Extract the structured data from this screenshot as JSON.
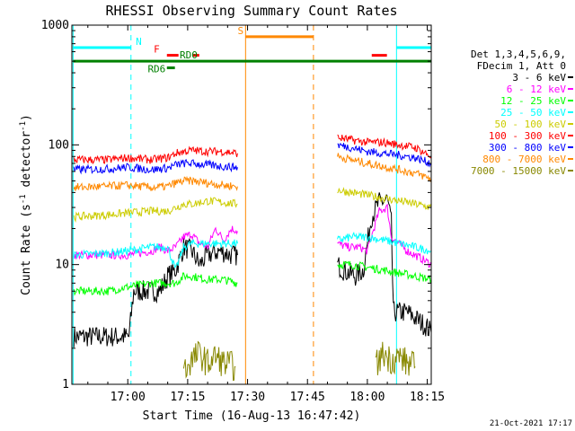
{
  "chart_data": {
    "type": "line",
    "title": "RHESSI Observing Summary Count Rates",
    "xlabel": "Start Time (16-Aug-13 16:47:42)",
    "ylabel_main": "Count Rate (s",
    "ylabel_sup1": "-1",
    "ylabel_mid": " detector",
    "ylabel_sup2": "-1",
    "ylabel_end": ")",
    "yscale": "log",
    "ylim": [
      1,
      1000
    ],
    "xlim_minutes": [
      16.0,
      106.0
    ],
    "x_ticks": [
      {
        "min": 30,
        "label": "17:00"
      },
      {
        "min": 45,
        "label": "17:15"
      },
      {
        "min": 60,
        "label": "17:30"
      },
      {
        "min": 75,
        "label": "17:45"
      },
      {
        "min": 90,
        "label": "18:00"
      },
      {
        "min": 105,
        "label": "18:15"
      }
    ],
    "y_ticks": [
      {
        "v": 1,
        "label": "1"
      },
      {
        "v": 10,
        "label": "10"
      },
      {
        "v": 100,
        "label": "100"
      },
      {
        "v": 1000,
        "label": "1000"
      }
    ],
    "legend_header": [
      "Det 1,3,4,5,6,9,",
      "FDecim 1, Att 0"
    ],
    "series": [
      {
        "name": "3 - 6 keV",
        "color": "#000000",
        "segments": [
          [
            [
              16.5,
              2.5
            ],
            [
              25,
              2.5
            ],
            [
              30.3,
              2.5
            ],
            [
              31.5,
              6
            ],
            [
              38,
              6
            ],
            [
              40,
              8
            ],
            [
              42,
              9
            ],
            [
              44,
              14
            ],
            [
              46,
              13
            ],
            [
              48,
              10
            ],
            [
              50,
              12
            ],
            [
              53,
              13
            ],
            [
              56,
              12
            ],
            [
              57.5,
              12
            ]
          ],
          [
            [
              82.5,
              10
            ],
            [
              84,
              9
            ],
            [
              87,
              8
            ],
            [
              89,
              9
            ],
            [
              91,
              25
            ],
            [
              93,
              33
            ],
            [
              95,
              35
            ],
            [
              96,
              22
            ],
            [
              96.5,
              4
            ],
            [
              100,
              4
            ],
            [
              105,
              3
            ],
            [
              106,
              2.7
            ]
          ]
        ]
      },
      {
        "name": "6 - 12 keV",
        "color": "#ff00ff",
        "segments": [
          [
            [
              16.5,
              12
            ],
            [
              25,
              12
            ],
            [
              30,
              12
            ],
            [
              36,
              13
            ],
            [
              38,
              14
            ],
            [
              40,
              13
            ],
            [
              42,
              14
            ],
            [
              44,
              17
            ],
            [
              46,
              18
            ],
            [
              48,
              15
            ],
            [
              50,
              14
            ],
            [
              52,
              20
            ],
            [
              54,
              16
            ],
            [
              56,
              20
            ],
            [
              57.5,
              19
            ]
          ],
          [
            [
              82.5,
              15
            ],
            [
              85,
              14
            ],
            [
              88,
              14
            ],
            [
              90,
              13
            ],
            [
              92,
              22
            ],
            [
              93,
              28
            ],
            [
              95,
              30
            ],
            [
              96,
              17
            ],
            [
              100,
              13
            ],
            [
              104,
              11
            ],
            [
              106,
              10
            ]
          ]
        ]
      },
      {
        "name": "12 - 25 keV",
        "color": "#00ff00",
        "segments": [
          [
            [
              16.5,
              6
            ],
            [
              25,
              6
            ],
            [
              30,
              6.5
            ],
            [
              36,
              7
            ],
            [
              38,
              7
            ],
            [
              40,
              7
            ],
            [
              42,
              7
            ],
            [
              44,
              8
            ],
            [
              46,
              8
            ],
            [
              50,
              7.5
            ],
            [
              54,
              7.5
            ],
            [
              57.5,
              7
            ]
          ],
          [
            [
              82.5,
              10
            ],
            [
              86,
              10
            ],
            [
              90,
              9.5
            ],
            [
              94,
              9
            ],
            [
              98,
              8.5
            ],
            [
              102,
              8
            ],
            [
              106,
              7.5
            ]
          ]
        ]
      },
      {
        "name": "25 - 50 keV",
        "color": "#00ffff",
        "segments": [
          [
            [
              16.5,
              12
            ],
            [
              25,
              12.5
            ],
            [
              30,
              13
            ],
            [
              36,
              14
            ],
            [
              40,
              14
            ],
            [
              42,
              9
            ],
            [
              44,
              14
            ],
            [
              46,
              15
            ],
            [
              50,
              15
            ],
            [
              54,
              15
            ],
            [
              57.5,
              15
            ]
          ],
          [
            [
              82.5,
              16
            ],
            [
              86,
              17
            ],
            [
              90,
              17
            ],
            [
              94,
              16
            ],
            [
              98,
              15
            ],
            [
              102,
              14
            ],
            [
              106,
              13
            ]
          ]
        ]
      },
      {
        "name": "50 - 100 keV",
        "color": "#cccc00",
        "segments": [
          [
            [
              16.5,
              25
            ],
            [
              25,
              26
            ],
            [
              30,
              27
            ],
            [
              36,
              28
            ],
            [
              40,
              28
            ],
            [
              42,
              30
            ],
            [
              44,
              32
            ],
            [
              46,
              32
            ],
            [
              50,
              34
            ],
            [
              54,
              33
            ],
            [
              57.5,
              32
            ]
          ],
          [
            [
              82.5,
              42
            ],
            [
              86,
              40
            ],
            [
              90,
              38
            ],
            [
              94,
              36
            ],
            [
              98,
              34
            ],
            [
              102,
              32
            ],
            [
              106,
              30
            ]
          ]
        ]
      },
      {
        "name": "100 - 300 keV",
        "color": "#ff0000",
        "segments": [
          [
            [
              16.5,
              75
            ],
            [
              25,
              75
            ],
            [
              30,
              78
            ],
            [
              36,
              75
            ],
            [
              40,
              78
            ],
            [
              42,
              85
            ],
            [
              44,
              88
            ],
            [
              46,
              90
            ],
            [
              50,
              88
            ],
            [
              54,
              88
            ],
            [
              57.5,
              85
            ]
          ],
          [
            [
              82.5,
              115
            ],
            [
              86,
              110
            ],
            [
              90,
              105
            ],
            [
              94,
              105
            ],
            [
              98,
              100
            ],
            [
              102,
              95
            ],
            [
              106,
              80
            ]
          ]
        ]
      },
      {
        "name": "300 - 800 keV",
        "color": "#0000ff",
        "segments": [
          [
            [
              16.5,
              62
            ],
            [
              25,
              63
            ],
            [
              30,
              65
            ],
            [
              36,
              62
            ],
            [
              40,
              64
            ],
            [
              42,
              68
            ],
            [
              44,
              70
            ],
            [
              46,
              70
            ],
            [
              50,
              68
            ],
            [
              54,
              66
            ],
            [
              57.5,
              65
            ]
          ],
          [
            [
              82.5,
              100
            ],
            [
              86,
              95
            ],
            [
              90,
              88
            ],
            [
              94,
              85
            ],
            [
              98,
              82
            ],
            [
              102,
              78
            ],
            [
              106,
              70
            ]
          ]
        ]
      },
      {
        "name": "800 - 7000 keV",
        "color": "#ff8800",
        "segments": [
          [
            [
              16.5,
              44
            ],
            [
              25,
              45
            ],
            [
              30,
              46
            ],
            [
              36,
              44
            ],
            [
              40,
              45
            ],
            [
              42,
              48
            ],
            [
              44,
              50
            ],
            [
              46,
              50
            ],
            [
              50,
              48
            ],
            [
              54,
              46
            ],
            [
              57.5,
              45
            ]
          ],
          [
            [
              82.5,
              80
            ],
            [
              86,
              75
            ],
            [
              90,
              70
            ],
            [
              94,
              66
            ],
            [
              98,
              62
            ],
            [
              102,
              58
            ],
            [
              106,
              52
            ]
          ]
        ]
      },
      {
        "name": "7000 - 15000 keV",
        "color": "#888800",
        "segments": [
          [
            [
              44,
              1.3
            ],
            [
              46,
              1.6
            ],
            [
              48,
              1.8
            ],
            [
              50,
              1.5
            ],
            [
              52,
              1.7
            ],
            [
              54,
              1.5
            ],
            [
              57,
              1.4
            ]
          ],
          [
            [
              92,
              1.4
            ],
            [
              94,
              1.8
            ],
            [
              96,
              1.6
            ],
            [
              98,
              1.7
            ],
            [
              100,
              1.5
            ],
            [
              102,
              1.4
            ]
          ]
        ]
      }
    ],
    "bars": [
      {
        "label": "N",
        "color": "#00ffff",
        "y": 650,
        "spans": [
          [
            16.3,
            30.8
          ],
          [
            97.3,
            106.5
          ]
        ],
        "label_min": 32
      },
      {
        "label": "S",
        "color": "#ff8800",
        "y": 800,
        "spans": [
          [
            59.5,
            76.5
          ]
        ],
        "label_min": 57.5
      },
      {
        "label": "F",
        "color": "#ff0000",
        "y": 560,
        "spans": [
          [
            39.8,
            42.7
          ],
          [
            46.2,
            47.9
          ],
          [
            91.1,
            94.9
          ]
        ],
        "label_min": 36.5
      },
      {
        "label": "RD0",
        "color": "#008000",
        "y": 500,
        "spans": [
          [
            16.3,
            106.5
          ]
        ],
        "label_min": 43
      },
      {
        "label": "RD6",
        "color": "#008000",
        "y": 440,
        "spans": [
          [
            39.8,
            41.8
          ]
        ],
        "label_min": 35
      }
    ],
    "vlines": [
      {
        "min": 16.3,
        "color": "#00ffff",
        "dash": false
      },
      {
        "min": 30.8,
        "color": "#00ffff",
        "dash": true
      },
      {
        "min": 59.5,
        "color": "#ff8800",
        "dash": false
      },
      {
        "min": 76.5,
        "color": "#ff8800",
        "dash": true
      },
      {
        "min": 97.3,
        "color": "#00ffff",
        "dash": false
      },
      {
        "min": 106.5,
        "color": "#00ffff",
        "dash": true
      }
    ],
    "footer_date": "21-Oct-2021 17:17"
  }
}
